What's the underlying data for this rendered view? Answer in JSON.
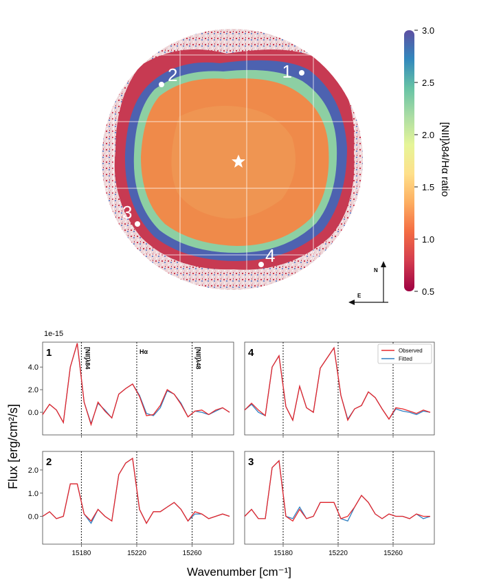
{
  "colorbar": {
    "label": "[NII]λ84/Hα ratio",
    "ticks": [
      "3.0",
      "2.5",
      "2.0",
      "1.5",
      "1.0",
      "0.5"
    ],
    "range": [
      0.5,
      3.0
    ],
    "colormap": [
      "#5e4fa2",
      "#3288bd",
      "#66c2a5",
      "#abdda4",
      "#e6f598",
      "#fee08b",
      "#fdae61",
      "#f46d43",
      "#d53e4f",
      "#9e0142"
    ]
  },
  "map": {
    "regions": [
      {
        "label": "1",
        "position": "upper-right"
      },
      {
        "label": "2",
        "position": "upper-left"
      },
      {
        "label": "3",
        "position": "left"
      },
      {
        "label": "4",
        "position": "bottom"
      }
    ],
    "center_marker": "star-icon",
    "compass": {
      "north": "N",
      "east": "E"
    },
    "ring_color": "#c03050",
    "core_color": "#ef8a4a",
    "edge_color": "#4d62b0"
  },
  "chart_data": {
    "type": "line",
    "scale_label": "1e-15",
    "ylabel": "Flux [erg/cm²/s]",
    "xlabel": "Wavenumber [cm⁻¹]",
    "xlim": [
      15152,
      15290
    ],
    "x_ticks": [
      "15180",
      "15220",
      "15260"
    ],
    "line_markers": [
      {
        "x": 15180,
        "label": "[NII]λ84"
      },
      {
        "x": 15220,
        "label": "Hα"
      },
      {
        "x": 15260,
        "label": "[NII]λ48"
      }
    ],
    "legend": {
      "position": "top-right",
      "entries": [
        {
          "name": "Observed",
          "color": "#e8262a"
        },
        {
          "name": "Fitted",
          "color": "#2f7fc1"
        }
      ]
    },
    "x": [
      15152,
      15157,
      15162,
      15167,
      15172,
      15177,
      15182,
      15187,
      15192,
      15197,
      15202,
      15207,
      15212,
      15217,
      15222,
      15227,
      15232,
      15237,
      15242,
      15247,
      15252,
      15257,
      15262,
      15267,
      15272,
      15277,
      15282,
      15287
    ],
    "panels": [
      {
        "label": "1",
        "y_ticks": [
          "4.0",
          "2.0",
          "0.0"
        ],
        "ylim": [
          -2.0,
          6.2
        ],
        "series": [
          {
            "name": "Observed",
            "values": [
              -0.2,
              0.7,
              0.2,
              -0.9,
              4.0,
              6.1,
              0.9,
              -1.1,
              0.9,
              0.1,
              -0.5,
              1.6,
              2.1,
              2.5,
              1.4,
              -0.3,
              -0.2,
              0.6,
              2.0,
              1.6,
              0.7,
              -0.4,
              0.1,
              0.2,
              -0.2,
              0.2,
              0.4,
              0.0
            ]
          },
          {
            "name": "Fitted",
            "values": [
              -0.2,
              0.7,
              0.2,
              -0.9,
              4.0,
              6.1,
              0.9,
              -1.0,
              0.8,
              0.2,
              -0.5,
              1.6,
              2.1,
              2.5,
              1.5,
              -0.1,
              -0.3,
              0.4,
              1.9,
              1.6,
              0.8,
              -0.4,
              0.1,
              0.0,
              -0.2,
              0.1,
              0.4,
              0.0
            ]
          }
        ]
      },
      {
        "label": "4",
        "y_ticks": [],
        "ylim": [
          -2.0,
          6.2
        ],
        "series": [
          {
            "name": "Observed",
            "values": [
              0.2,
              0.8,
              0.2,
              -0.3,
              4.0,
              5.0,
              0.5,
              -0.7,
              2.3,
              0.4,
              0.0,
              3.9,
              4.8,
              5.7,
              1.5,
              -0.7,
              0.3,
              0.6,
              1.8,
              1.3,
              0.3,
              -0.6,
              0.4,
              0.3,
              0.1,
              -0.1,
              0.2,
              0.0
            ]
          },
          {
            "name": "Fitted",
            "values": [
              0.2,
              0.7,
              0.0,
              -0.3,
              4.0,
              5.0,
              0.5,
              -0.7,
              2.3,
              0.4,
              0.0,
              3.9,
              4.8,
              5.7,
              1.5,
              -0.6,
              0.3,
              0.6,
              1.8,
              1.3,
              0.3,
              -0.6,
              0.3,
              0.1,
              0.0,
              -0.2,
              0.1,
              0.0
            ]
          }
        ]
      },
      {
        "label": "2",
        "y_ticks": [
          "2.0",
          "1.0",
          "0.0"
        ],
        "ylim": [
          -1.2,
          2.8
        ],
        "series": [
          {
            "name": "Observed",
            "values": [
              0.0,
              0.2,
              -0.1,
              0.0,
              1.4,
              1.4,
              0.1,
              -0.2,
              0.3,
              0.0,
              -0.2,
              1.8,
              2.3,
              2.5,
              0.3,
              -0.3,
              0.2,
              0.2,
              0.4,
              0.6,
              0.3,
              -0.2,
              0.2,
              0.1,
              -0.1,
              0.0,
              0.1,
              0.0
            ]
          },
          {
            "name": "Fitted",
            "values": [
              0.0,
              0.2,
              -0.1,
              0.0,
              1.4,
              1.4,
              0.1,
              -0.3,
              0.3,
              0.0,
              -0.2,
              1.8,
              2.3,
              2.5,
              0.3,
              -0.3,
              0.2,
              0.2,
              0.4,
              0.6,
              0.3,
              -0.2,
              0.1,
              0.1,
              -0.1,
              0.0,
              0.1,
              0.0
            ]
          }
        ]
      },
      {
        "label": "3",
        "y_ticks": [],
        "ylim": [
          -1.2,
          2.8
        ],
        "series": [
          {
            "name": "Observed",
            "values": [
              0.0,
              0.3,
              -0.1,
              -0.1,
              2.1,
              2.4,
              0.0,
              -0.2,
              0.3,
              -0.1,
              0.0,
              0.6,
              0.6,
              0.6,
              -0.1,
              0.0,
              0.4,
              0.9,
              0.6,
              0.1,
              -0.1,
              0.1,
              0.0,
              0.0,
              -0.1,
              0.1,
              0.0,
              0.0
            ]
          },
          {
            "name": "Fitted",
            "values": [
              0.0,
              0.3,
              -0.1,
              -0.1,
              2.1,
              2.4,
              0.0,
              -0.1,
              0.4,
              -0.1,
              0.0,
              0.6,
              0.6,
              0.6,
              -0.1,
              -0.2,
              0.4,
              0.9,
              0.6,
              0.1,
              -0.1,
              0.1,
              0.0,
              0.0,
              -0.1,
              0.1,
              -0.1,
              0.0
            ]
          }
        ]
      }
    ]
  }
}
